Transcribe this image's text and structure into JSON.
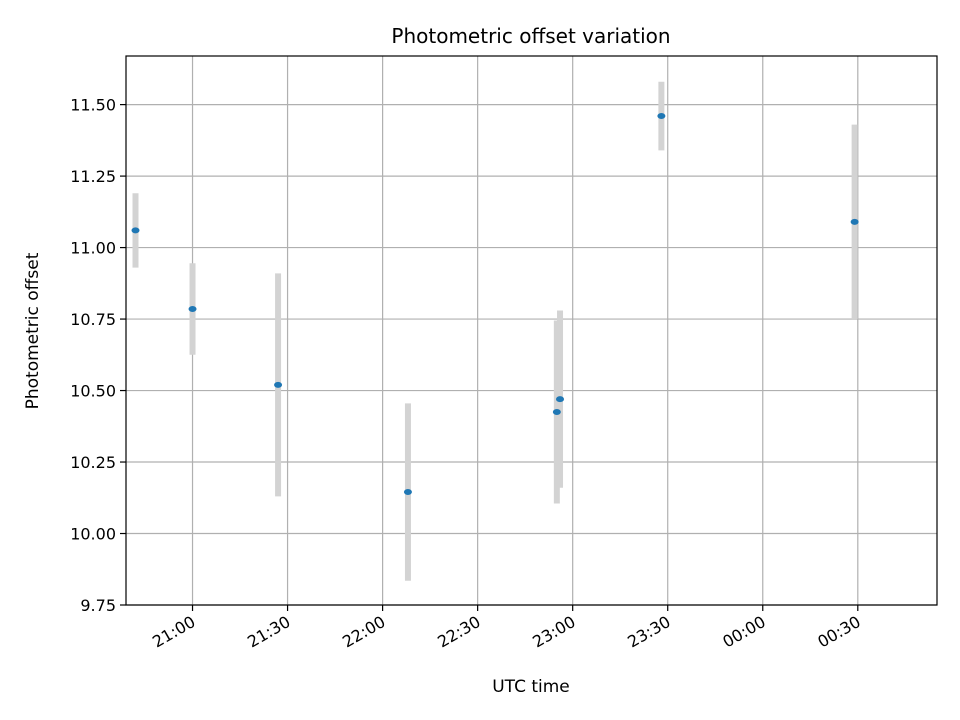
{
  "chart_data": {
    "type": "scatter",
    "title": "Photometric offset variation",
    "xlabel": "UTC time",
    "ylabel": "Photometric offset",
    "grid": true,
    "xlim": [
      "20:39",
      "00:55"
    ],
    "ylim": [
      9.75,
      11.67
    ],
    "x_ticks": [
      "21:00",
      "21:30",
      "22:00",
      "22:30",
      "23:00",
      "23:30",
      "00:00",
      "00:30"
    ],
    "y_ticks": [
      "9.75",
      "10.00",
      "10.25",
      "10.50",
      "10.75",
      "11.00",
      "11.25",
      "11.50"
    ],
    "colors": {
      "point": "#1f77b4",
      "errorbar": "#d3d3d3",
      "grid": "#b0b0b0"
    },
    "points": [
      {
        "x": "20:42",
        "y": 11.06,
        "err": 0.13
      },
      {
        "x": "21:00",
        "y": 10.785,
        "err": 0.16
      },
      {
        "x": "21:27",
        "y": 10.52,
        "err": 0.39
      },
      {
        "x": "22:08",
        "y": 10.145,
        "err": 0.31
      },
      {
        "x": "22:55",
        "y": 10.425,
        "err": 0.32
      },
      {
        "x": "22:56",
        "y": 10.47,
        "err": 0.31
      },
      {
        "x": "23:28",
        "y": 11.46,
        "err": 0.12
      },
      {
        "x": "00:29",
        "y": 11.09,
        "err": 0.34
      }
    ]
  }
}
